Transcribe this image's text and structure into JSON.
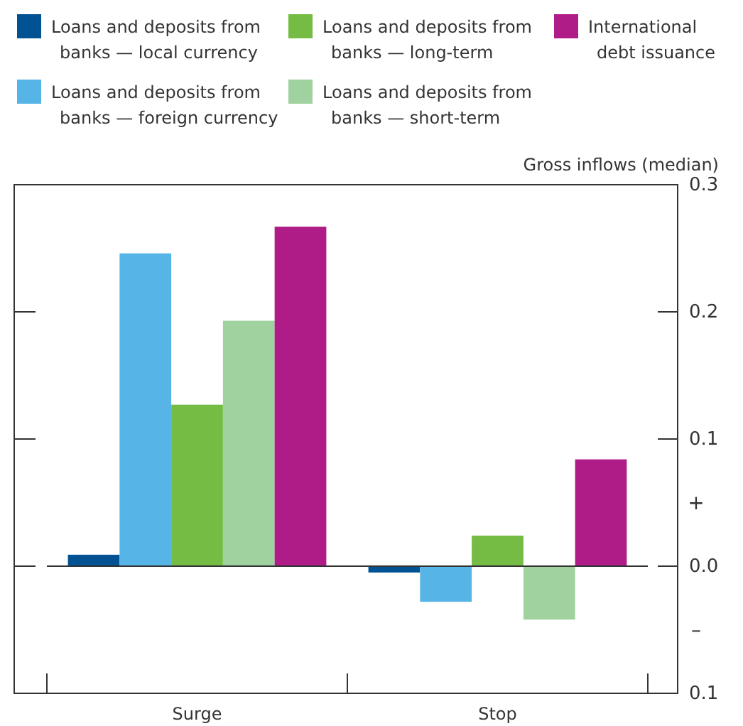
{
  "chart_data": {
    "type": "bar",
    "ylabel": "Gross inflows (median)",
    "categories": [
      "Surge",
      "Stop"
    ],
    "series": [
      {
        "name": "Loans and deposits from banks — local currency",
        "color": "#005293",
        "values": [
          0.009,
          -0.005
        ]
      },
      {
        "name": "Loans and deposits from banks — foreign currency",
        "color": "#56b4e6",
        "values": [
          0.246,
          -0.028
        ]
      },
      {
        "name": "Loans and deposits from banks — long-term",
        "color": "#74bc43",
        "values": [
          0.127,
          0.024
        ]
      },
      {
        "name": "Loans and deposits from banks — short-term",
        "color": "#9fd29f",
        "values": [
          0.193,
          -0.042
        ]
      },
      {
        "name": "International debt issuance",
        "color": "#b01c87",
        "values": [
          0.267,
          0.084
        ]
      }
    ],
    "ylim": [
      -0.1,
      0.3
    ],
    "yticks": [
      {
        "value": -0.1,
        "label": "0.1"
      },
      {
        "value": 0,
        "label": "0.0"
      },
      0.1,
      0.2,
      0.3
    ],
    "annotations": [
      "+",
      "–"
    ],
    "legend": "top"
  }
}
